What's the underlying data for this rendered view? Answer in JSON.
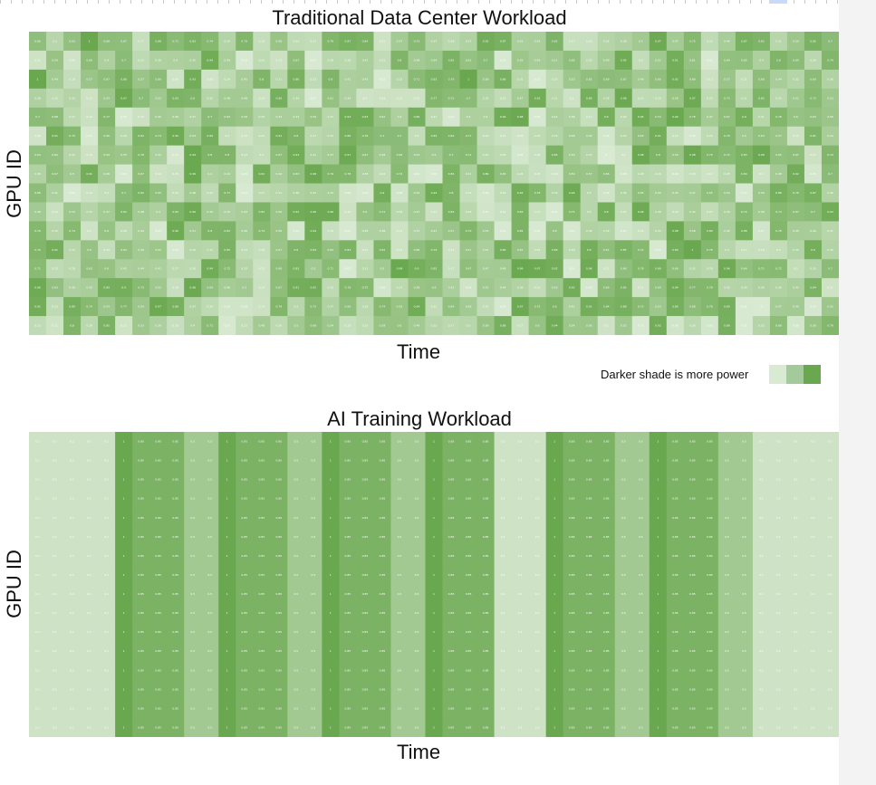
{
  "chart_data": [
    {
      "type": "heatmap",
      "title": "Traditional Data Center Workload",
      "xlabel": "Time",
      "ylabel": "GPU ID",
      "rows": 16,
      "cols": 47,
      "value_range": [
        0,
        1
      ],
      "pattern": "random",
      "color_min": "#d9ead3",
      "color_max": "#6aa84f"
    },
    {
      "type": "heatmap",
      "title": "AI Training Workload",
      "xlabel": "Time",
      "ylabel": "GPU ID",
      "rows": 16,
      "cols": 47,
      "value_range": [
        0,
        1
      ],
      "pattern": "column",
      "column_values": [
        0.1,
        0.1,
        0.1,
        0.1,
        0.1,
        1.0,
        0.85,
        0.85,
        0.85,
        0.5,
        0.5,
        1.0,
        0.85,
        0.85,
        0.85,
        0.5,
        0.5,
        1.0,
        0.85,
        0.85,
        0.85,
        0.5,
        0.5,
        1.0,
        0.85,
        0.85,
        0.85,
        0.1,
        0.1,
        0.1,
        1.0,
        0.85,
        0.85,
        0.85,
        0.5,
        0.5,
        1.0,
        0.85,
        0.85,
        0.85,
        0.5,
        0.5,
        0.1,
        0.1,
        0.1,
        0.1,
        0.1
      ],
      "color_min": "#d9ead3",
      "color_max": "#6aa84f"
    }
  ],
  "legend": {
    "text": "Darker shade is more power",
    "swatches": [
      "#d9ead3",
      "#a4c99a",
      "#6aa84f"
    ]
  }
}
